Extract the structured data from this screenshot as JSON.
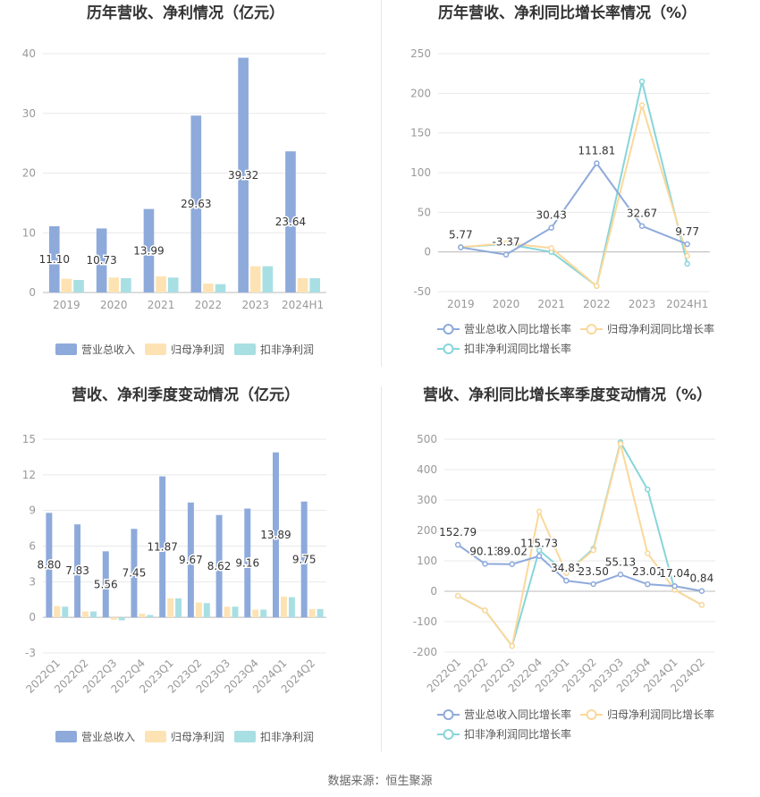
{
  "source_note": "数据来源：恒生聚源",
  "colors": {
    "revenue": "#8eaadb",
    "net": "#fde3b3",
    "nonrec": "#a8dfe3",
    "revenue_line": "#8eaadb",
    "net_line": "#fbd89a",
    "nonrec_line": "#87d5da",
    "axis_text": "#999999",
    "label_text": "#333333",
    "grid": "#e8e8e8"
  },
  "chart_data": [
    {
      "id": "annual-bar",
      "type": "bar",
      "title": "历年营收、净利情况（亿元）",
      "categories": [
        "2019",
        "2020",
        "2021",
        "2022",
        "2023",
        "2024H1"
      ],
      "ylim": [
        0,
        40
      ],
      "yticks": [
        0,
        10,
        20,
        30,
        40
      ],
      "grid": true,
      "legend_position": "bottom",
      "labeled_series": 0,
      "series": [
        {
          "name": "营业总收入",
          "values": [
            11.1,
            10.73,
            13.99,
            29.63,
            39.32,
            23.64
          ],
          "labels": [
            "11.10",
            "10.73",
            "13.99",
            "29.63",
            "39.32",
            "23.64"
          ]
        },
        {
          "name": "归母净利润",
          "values": [
            2.3,
            2.5,
            2.7,
            1.5,
            4.4,
            2.4
          ]
        },
        {
          "name": "扣非净利润",
          "values": [
            2.1,
            2.4,
            2.5,
            1.4,
            4.4,
            2.4
          ]
        }
      ]
    },
    {
      "id": "annual-line",
      "type": "line",
      "title": "历年营收、净利同比增长率情况（%）",
      "categories": [
        "2019",
        "2020",
        "2021",
        "2022",
        "2023",
        "2024H1"
      ],
      "ylim": [
        -50,
        250
      ],
      "yticks": [
        -50,
        0,
        50,
        100,
        150,
        200,
        250
      ],
      "grid": true,
      "legend_position": "bottom",
      "labeled_series": 0,
      "series": [
        {
          "name": "营业总收入同比增长率",
          "values": [
            5.77,
            -3.37,
            30.43,
            111.81,
            32.67,
            9.77
          ],
          "labels": [
            "5.77",
            "-3.37",
            "30.43",
            "111.81",
            "32.67",
            "9.77"
          ]
        },
        {
          "name": "归母净利润同比增长率",
          "values": [
            6,
            11,
            5,
            -43,
            185,
            -5
          ]
        },
        {
          "name": "扣非净利润同比增长率",
          "values": [
            6,
            10,
            0,
            -43,
            215,
            -15
          ]
        }
      ]
    },
    {
      "id": "quarter-bar",
      "type": "bar",
      "title": "营收、净利季度变动情况（亿元）",
      "categories": [
        "2022Q1",
        "2022Q2",
        "2022Q3",
        "2022Q4",
        "2023Q1",
        "2023Q2",
        "2023Q3",
        "2023Q4",
        "2024Q1",
        "2024Q2"
      ],
      "ylim": [
        -3,
        15
      ],
      "yticks": [
        -3,
        0,
        3,
        6,
        9,
        12,
        15
      ],
      "grid": true,
      "legend_position": "bottom",
      "labeled_series": 0,
      "series": [
        {
          "name": "营业总收入",
          "values": [
            8.8,
            7.83,
            5.56,
            7.45,
            11.87,
            9.67,
            8.62,
            9.16,
            13.89,
            9.75
          ],
          "labels": [
            "8.80",
            "7.83",
            "5.56",
            "7.45",
            "11.87",
            "9.67",
            "8.62",
            "9.16",
            "13.89",
            "9.75"
          ]
        },
        {
          "name": "归母净利润",
          "values": [
            0.95,
            0.5,
            -0.2,
            0.3,
            1.6,
            1.25,
            0.9,
            0.65,
            1.75,
            0.7
          ]
        },
        {
          "name": "扣非净利润",
          "values": [
            0.9,
            0.5,
            -0.25,
            0.2,
            1.6,
            1.2,
            0.9,
            0.65,
            1.7,
            0.7
          ]
        }
      ]
    },
    {
      "id": "quarter-line",
      "type": "line",
      "title": "营收、净利同比增长率季度变动情况（%）",
      "categories": [
        "2022Q1",
        "2022Q2",
        "2022Q3",
        "2022Q4",
        "2023Q1",
        "2023Q2",
        "2023Q3",
        "2023Q4",
        "2024Q1",
        "2024Q2"
      ],
      "ylim": [
        -200,
        500
      ],
      "yticks": [
        -200,
        -100,
        0,
        100,
        200,
        300,
        400,
        500
      ],
      "grid": true,
      "legend_position": "bottom",
      "labeled_series": 0,
      "series": [
        {
          "name": "营业总收入同比增长率",
          "values": [
            152.79,
            90.13,
            89.02,
            115.73,
            34.81,
            23.5,
            55.13,
            23.01,
            17.04,
            0.84
          ],
          "labels": [
            "152.79",
            "90.13",
            "89.02",
            "115.73",
            "34.81",
            "23.50",
            "55.13",
            "23.01",
            "17.04",
            "0.84"
          ]
        },
        {
          "name": "归母净利润同比增长率",
          "values": [
            -15,
            -63,
            -180,
            262,
            60,
            135,
            485,
            125,
            5,
            -45
          ]
        },
        {
          "name": "扣非净利润同比增长率",
          "values": [
            -15,
            -63,
            -180,
            135,
            60,
            140,
            490,
            335,
            5,
            -45
          ]
        }
      ]
    }
  ]
}
